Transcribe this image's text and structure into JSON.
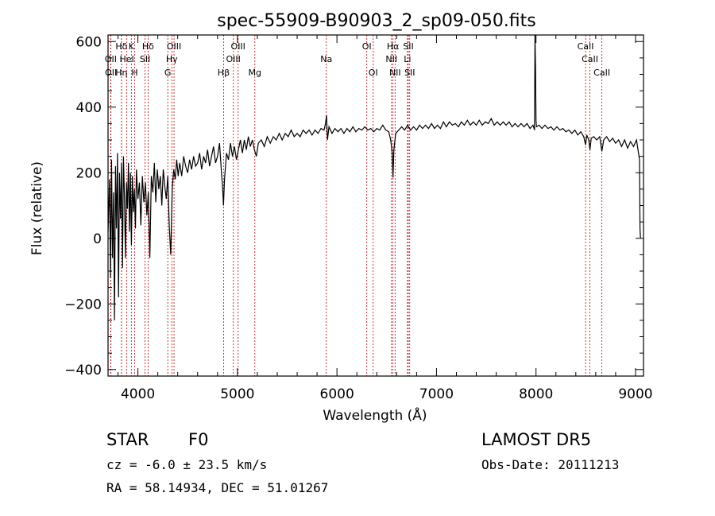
{
  "chart_data": {
    "type": "line",
    "title": "spec-55909-B90903_2_sp09-050.fits",
    "xlabel": "Wavelength (Å)",
    "ylabel": "Flux (relative)",
    "xlim": [
      3700,
      9080
    ],
    "ylim": [
      -420,
      620
    ],
    "x_ticks": [
      4000,
      5000,
      6000,
      7000,
      8000,
      9000
    ],
    "y_ticks": [
      -400,
      -200,
      0,
      200,
      400,
      600
    ],
    "grid": false,
    "series": [
      {
        "points": [
          [
            3700,
            20
          ],
          [
            3715,
            180
          ],
          [
            3725,
            -120
          ],
          [
            3735,
            240
          ],
          [
            3745,
            -60
          ],
          [
            3755,
            140
          ],
          [
            3765,
            -250
          ],
          [
            3775,
            220
          ],
          [
            3785,
            30
          ],
          [
            3795,
            260
          ],
          [
            3805,
            -180
          ],
          [
            3815,
            200
          ],
          [
            3825,
            60
          ],
          [
            3835,
            230
          ],
          [
            3845,
            -90
          ],
          [
            3855,
            250
          ],
          [
            3865,
            120
          ],
          [
            3875,
            -60
          ],
          [
            3885,
            170
          ],
          [
            3895,
            90
          ],
          [
            3905,
            230
          ],
          [
            3915,
            20
          ],
          [
            3925,
            200
          ],
          [
            3935,
            -20
          ],
          [
            3945,
            190
          ],
          [
            3955,
            80
          ],
          [
            3965,
            150
          ],
          [
            3975,
            30
          ],
          [
            3985,
            210
          ],
          [
            4000,
            120
          ],
          [
            4015,
            170
          ],
          [
            4030,
            40
          ],
          [
            4045,
            190
          ],
          [
            4060,
            110
          ],
          [
            4075,
            170
          ],
          [
            4090,
            70
          ],
          [
            4105,
            140
          ],
          [
            4120,
            -60
          ],
          [
            4135,
            190
          ],
          [
            4150,
            140
          ],
          [
            4165,
            230
          ],
          [
            4180,
            110
          ],
          [
            4195,
            210
          ],
          [
            4210,
            150
          ],
          [
            4225,
            190
          ],
          [
            4240,
            100
          ],
          [
            4255,
            210
          ],
          [
            4270,
            160
          ],
          [
            4285,
            120
          ],
          [
            4300,
            190
          ],
          [
            4315,
            40
          ],
          [
            4330,
            -50
          ],
          [
            4345,
            150
          ],
          [
            4360,
            210
          ],
          [
            4375,
            180
          ],
          [
            4390,
            240
          ],
          [
            4405,
            190
          ],
          [
            4420,
            230
          ],
          [
            4440,
            190
          ],
          [
            4460,
            250
          ],
          [
            4480,
            220
          ],
          [
            4500,
            200
          ],
          [
            4520,
            240
          ],
          [
            4540,
            210
          ],
          [
            4560,
            250
          ],
          [
            4580,
            220
          ],
          [
            4600,
            230
          ],
          [
            4620,
            260
          ],
          [
            4640,
            210
          ],
          [
            4660,
            250
          ],
          [
            4680,
            230
          ],
          [
            4700,
            270
          ],
          [
            4720,
            220
          ],
          [
            4740,
            250
          ],
          [
            4760,
            280
          ],
          [
            4780,
            230
          ],
          [
            4800,
            250
          ],
          [
            4820,
            290
          ],
          [
            4840,
            200
          ],
          [
            4850,
            160
          ],
          [
            4860,
            100
          ],
          [
            4870,
            180
          ],
          [
            4890,
            260
          ],
          [
            4910,
            240
          ],
          [
            4930,
            290
          ],
          [
            4950,
            250
          ],
          [
            4970,
            280
          ],
          [
            4990,
            240
          ],
          [
            5010,
            270
          ],
          [
            5030,
            300
          ],
          [
            5050,
            260
          ],
          [
            5070,
            300
          ],
          [
            5090,
            270
          ],
          [
            5110,
            310
          ],
          [
            5130,
            280
          ],
          [
            5150,
            300
          ],
          [
            5170,
            270
          ],
          [
            5190,
            250
          ],
          [
            5210,
            290
          ],
          [
            5240,
            300
          ],
          [
            5270,
            280
          ],
          [
            5300,
            310
          ],
          [
            5330,
            290
          ],
          [
            5360,
            310
          ],
          [
            5390,
            300
          ],
          [
            5420,
            320
          ],
          [
            5450,
            300
          ],
          [
            5480,
            320
          ],
          [
            5510,
            310
          ],
          [
            5540,
            330
          ],
          [
            5570,
            310
          ],
          [
            5600,
            320
          ],
          [
            5630,
            310
          ],
          [
            5660,
            330
          ],
          [
            5690,
            320
          ],
          [
            5720,
            330
          ],
          [
            5750,
            315
          ],
          [
            5780,
            330
          ],
          [
            5810,
            320
          ],
          [
            5840,
            335
          ],
          [
            5870,
            330
          ],
          [
            5885,
            350
          ],
          [
            5895,
            375
          ],
          [
            5905,
            300
          ],
          [
            5920,
            340
          ],
          [
            5950,
            320
          ],
          [
            5980,
            335
          ],
          [
            6010,
            325
          ],
          [
            6040,
            335
          ],
          [
            6070,
            320
          ],
          [
            6100,
            335
          ],
          [
            6130,
            325
          ],
          [
            6160,
            340
          ],
          [
            6190,
            325
          ],
          [
            6220,
            335
          ],
          [
            6250,
            330
          ],
          [
            6280,
            340
          ],
          [
            6310,
            330
          ],
          [
            6340,
            335
          ],
          [
            6370,
            325
          ],
          [
            6400,
            335
          ],
          [
            6430,
            330
          ],
          [
            6460,
            345
          ],
          [
            6490,
            330
          ],
          [
            6520,
            325
          ],
          [
            6540,
            300
          ],
          [
            6555,
            260
          ],
          [
            6563,
            185
          ],
          [
            6572,
            270
          ],
          [
            6590,
            320
          ],
          [
            6620,
            330
          ],
          [
            6650,
            340
          ],
          [
            6680,
            330
          ],
          [
            6710,
            345
          ],
          [
            6740,
            330
          ],
          [
            6770,
            340
          ],
          [
            6800,
            330
          ],
          [
            6830,
            345
          ],
          [
            6860,
            335
          ],
          [
            6890,
            345
          ],
          [
            6920,
            335
          ],
          [
            6950,
            350
          ],
          [
            6980,
            335
          ],
          [
            7010,
            345
          ],
          [
            7040,
            335
          ],
          [
            7070,
            355
          ],
          [
            7100,
            340
          ],
          [
            7130,
            355
          ],
          [
            7160,
            345
          ],
          [
            7190,
            350
          ],
          [
            7220,
            340
          ],
          [
            7250,
            355
          ],
          [
            7280,
            345
          ],
          [
            7310,
            360
          ],
          [
            7340,
            345
          ],
          [
            7370,
            355
          ],
          [
            7400,
            345
          ],
          [
            7430,
            360
          ],
          [
            7460,
            345
          ],
          [
            7490,
            355
          ],
          [
            7520,
            350
          ],
          [
            7550,
            365
          ],
          [
            7580,
            345
          ],
          [
            7610,
            355
          ],
          [
            7640,
            345
          ],
          [
            7670,
            355
          ],
          [
            7700,
            345
          ],
          [
            7730,
            355
          ],
          [
            7760,
            340
          ],
          [
            7790,
            350
          ],
          [
            7820,
            340
          ],
          [
            7850,
            350
          ],
          [
            7880,
            340
          ],
          [
            7910,
            350
          ],
          [
            7940,
            335
          ],
          [
            7970,
            345
          ],
          [
            7985,
            330
          ],
          [
            7990,
            620
          ],
          [
            7995,
            520
          ],
          [
            8000,
            360
          ],
          [
            8005,
            340
          ],
          [
            8030,
            345
          ],
          [
            8060,
            335
          ],
          [
            8090,
            345
          ],
          [
            8120,
            335
          ],
          [
            8150,
            340
          ],
          [
            8180,
            330
          ],
          [
            8210,
            340
          ],
          [
            8240,
            330
          ],
          [
            8270,
            335
          ],
          [
            8300,
            325
          ],
          [
            8330,
            330
          ],
          [
            8360,
            320
          ],
          [
            8390,
            330
          ],
          [
            8420,
            315
          ],
          [
            8450,
            325
          ],
          [
            8480,
            310
          ],
          [
            8498,
            285
          ],
          [
            8510,
            315
          ],
          [
            8530,
            300
          ],
          [
            8542,
            270
          ],
          [
            8555,
            305
          ],
          [
            8580,
            310
          ],
          [
            8610,
            300
          ],
          [
            8640,
            310
          ],
          [
            8662,
            265
          ],
          [
            8680,
            300
          ],
          [
            8710,
            310
          ],
          [
            8740,
            295
          ],
          [
            8770,
            305
          ],
          [
            8800,
            290
          ],
          [
            8830,
            300
          ],
          [
            8860,
            280
          ],
          [
            8890,
            300
          ],
          [
            8920,
            275
          ],
          [
            8950,
            295
          ],
          [
            8980,
            280
          ],
          [
            9010,
            300
          ],
          [
            9030,
            260
          ],
          [
            9040,
            240
          ],
          [
            9045,
            30
          ],
          [
            9050,
            0
          ]
        ]
      }
    ]
  },
  "spectral_lines": [
    {
      "label": "Hδ",
      "x": 3835,
      "row": 0
    },
    {
      "label": "K",
      "x": 3934,
      "row": 0
    },
    {
      "label": "Hδ",
      "x": 4102,
      "row": 0
    },
    {
      "label": "OIII",
      "x": 4363,
      "row": 0
    },
    {
      "label": "OIII",
      "x": 5007,
      "row": 0
    },
    {
      "label": "OI",
      "x": 6300,
      "row": 0
    },
    {
      "label": "Hα",
      "x": 6563,
      "row": 0
    },
    {
      "label": "SII",
      "x": 6717,
      "row": 0
    },
    {
      "label": "CaII",
      "x": 8498,
      "row": 0
    },
    {
      "label": "OII",
      "x": 3727,
      "row": 1
    },
    {
      "label": "HeI",
      "x": 3889,
      "row": 1
    },
    {
      "label": "SII",
      "x": 4072,
      "row": 1
    },
    {
      "label": "Hγ",
      "x": 4341,
      "row": 1
    },
    {
      "label": "OIII",
      "x": 4959,
      "row": 1
    },
    {
      "label": "Na",
      "x": 5893,
      "row": 1
    },
    {
      "label": "NII",
      "x": 6548,
      "row": 1
    },
    {
      "label": "Li",
      "x": 6708,
      "row": 1
    },
    {
      "label": "CaII",
      "x": 8542,
      "row": 1
    },
    {
      "label": "OII",
      "x": 3729,
      "row": 2
    },
    {
      "label": "Hη",
      "x": 3835,
      "row": 2
    },
    {
      "label": "H",
      "x": 3968,
      "row": 2
    },
    {
      "label": "G",
      "x": 4300,
      "row": 2
    },
    {
      "label": "Hβ",
      "x": 4861,
      "row": 2
    },
    {
      "label": "Mg",
      "x": 5175,
      "row": 2
    },
    {
      "label": "OI",
      "x": 6364,
      "row": 2
    },
    {
      "label": "NII",
      "x": 6584,
      "row": 2
    },
    {
      "label": "SII",
      "x": 6731,
      "row": 2
    },
    {
      "label": "CaII",
      "x": 8662,
      "row": 2
    }
  ],
  "info": {
    "class": "STAR",
    "subclass": "F0",
    "survey": "LAMOST DR5",
    "cz": "cz = -6.0 ± 23.5 km/s",
    "obs_date": "Obs-Date: 20111213",
    "radec": "RA =  58.14934, DEC =  51.01267"
  },
  "colors": {
    "line": "#000000",
    "marker": "#c00000"
  }
}
